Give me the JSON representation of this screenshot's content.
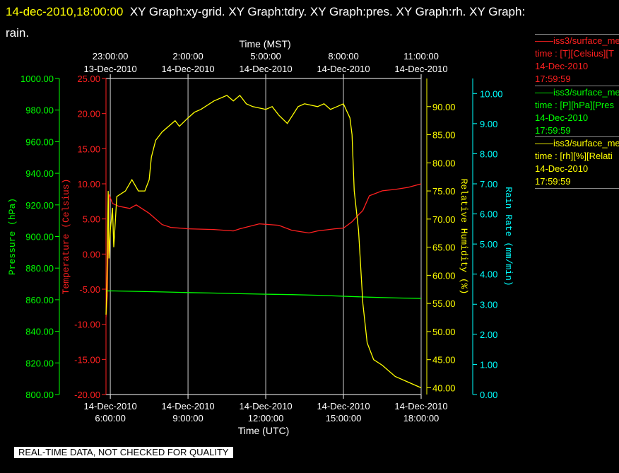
{
  "header": {
    "timestamp": "14-dec-2010,18:00:00",
    "titles": "XY Graph:xy-grid.  XY Graph:tdry.  XY Graph:pres.  XY Graph:rh.  XY Graph:",
    "titles_wrap": "rain."
  },
  "legend": [
    {
      "name": "——iss3/surface_me",
      "units": "time : [T][Celsius][T",
      "date": "14-Dec-2010",
      "time": "17:59:59",
      "color": "#ff2020"
    },
    {
      "name": "——iss3/surface_me",
      "units": "time : [P][hPa][Pres",
      "date": "14-Dec-2010",
      "time": "17:59:59",
      "color": "#00ff00"
    },
    {
      "name": "——iss3/surface_me",
      "units": "time : [rh][%][Relati",
      "date": "14-Dec-2010",
      "time": "17:59:59",
      "color": "#ffff00"
    }
  ],
  "notice": "REAL-TIME DATA, NOT CHECKED FOR QUALITY",
  "chart_data": {
    "type": "line",
    "top_axis_label": "Time (MST)",
    "bottom_axis_label": "Time (UTC)",
    "top_ticks": [
      {
        "time": "23:00:00",
        "date": "13-Dec-2010"
      },
      {
        "time": "2:00:00",
        "date": "14-Dec-2010"
      },
      {
        "time": "5:00:00",
        "date": "14-Dec-2010"
      },
      {
        "time": "8:00:00",
        "date": "14-Dec-2010"
      },
      {
        "time": "11:00:00",
        "date": "14-Dec-2010"
      }
    ],
    "bottom_ticks": [
      {
        "date": "14-Dec-2010",
        "time": "6:00:00"
      },
      {
        "date": "14-Dec-2010",
        "time": "9:00:00"
      },
      {
        "date": "14-Dec-2010",
        "time": "12:00:00"
      },
      {
        "date": "14-Dec-2010",
        "time": "15:00:00"
      },
      {
        "date": "14-Dec-2010",
        "time": "18:00:00"
      }
    ],
    "xlim": [
      "14-Dec-2010 5:50",
      "14-Dec-2010 18:00"
    ],
    "grid": true,
    "axes": {
      "pressure": {
        "label": "Pressure (hPa)",
        "ylim": [
          800,
          1000
        ],
        "ticks": [
          "800.00",
          "820.00",
          "840.00",
          "860.00",
          "880.00",
          "900.00",
          "920.00",
          "940.00",
          "960.00",
          "980.00",
          "1000.00"
        ],
        "color": "#00ff00"
      },
      "temperature": {
        "label": "Temperature (Celsius)",
        "ylim": [
          -20,
          25
        ],
        "ticks": [
          "-20.00",
          "-15.00",
          "-10.00",
          "-5.00",
          "0.00",
          "5.00",
          "10.00",
          "15.00",
          "20.00",
          "25.00"
        ],
        "color": "#ff2020"
      },
      "humidity": {
        "label": "Relative Humidity (%)",
        "ylim": [
          38.8,
          95
        ],
        "ticks": [
          "40.00",
          "45.00",
          "50.00",
          "55.00",
          "60.00",
          "65.00",
          "70.00",
          "75.00",
          "80.00",
          "85.00",
          "90.00"
        ],
        "color": "#ffff00"
      },
      "rain": {
        "label": "Rain Rate (mm/min)",
        "ylim": [
          0,
          10.5
        ],
        "ticks": [
          "0.00",
          "1.00",
          "2.00",
          "3.00",
          "4.00",
          "5.00",
          "6.00",
          "7.00",
          "8.00",
          "9.00",
          "10.00"
        ],
        "color": "#00ffff"
      }
    },
    "series": [
      {
        "axis": "temperature",
        "color": "#ff2020",
        "x": [
          "14-Dec-2010 5:50",
          "14-Dec-2010 5:53",
          "14-Dec-2010 5:57",
          "14-Dec-2010 6:05",
          "14-Dec-2010 6:20",
          "14-Dec-2010 6:45",
          "14-Dec-2010 7:00",
          "14-Dec-2010 7:30",
          "14-Dec-2010 8:00",
          "14-Dec-2010 8:20",
          "14-Dec-2010 9:00",
          "14-Dec-2010 10:00",
          "14-Dec-2010 10:45",
          "14-Dec-2010 11:00",
          "14-Dec-2010 11:45",
          "14-Dec-2010 12:30",
          "14-Dec-2010 13:00",
          "14-Dec-2010 13:40",
          "14-Dec-2010 14:00",
          "14-Dec-2010 14:40",
          "14-Dec-2010 15:00",
          "14-Dec-2010 15:20",
          "14-Dec-2010 15:35",
          "14-Dec-2010 15:45",
          "14-Dec-2010 16:00",
          "14-Dec-2010 16:30",
          "14-Dec-2010 17:00",
          "14-Dec-2010 17:30",
          "14-Dec-2010 18:00"
        ],
        "y": [
          -9.0,
          -6.0,
          8.5,
          7.2,
          6.8,
          6.5,
          7.0,
          5.8,
          4.2,
          3.8,
          3.6,
          3.5,
          3.3,
          3.6,
          4.3,
          4.1,
          3.4,
          3.0,
          3.3,
          3.6,
          3.7,
          4.6,
          5.6,
          6.2,
          8.3,
          9.0,
          9.2,
          9.5,
          10.0
        ]
      },
      {
        "axis": "pressure",
        "color": "#00ff00",
        "x": [
          "14-Dec-2010 5:50",
          "14-Dec-2010 6:00",
          "14-Dec-2010 7:00",
          "14-Dec-2010 8:00",
          "14-Dec-2010 9:00",
          "14-Dec-2010 10:00",
          "14-Dec-2010 11:00",
          "14-Dec-2010 12:00",
          "14-Dec-2010 13:00",
          "14-Dec-2010 14:00",
          "14-Dec-2010 15:00",
          "14-Dec-2010 16:00",
          "14-Dec-2010 17:00",
          "14-Dec-2010 18:00"
        ],
        "y": [
          865.5,
          865.6,
          865.3,
          864.9,
          864.5,
          864.2,
          863.8,
          863.5,
          863.2,
          862.8,
          862.2,
          861.6,
          861.1,
          860.8
        ]
      },
      {
        "axis": "humidity",
        "color": "#ffff00",
        "x": [
          "14-Dec-2010 5:50",
          "14-Dec-2010 5:52",
          "14-Dec-2010 5:55",
          "14-Dec-2010 5:57",
          "14-Dec-2010 6:00",
          "14-Dec-2010 6:05",
          "14-Dec-2010 6:08",
          "14-Dec-2010 6:15",
          "14-Dec-2010 6:35",
          "14-Dec-2010 6:50",
          "14-Dec-2010 7:05",
          "14-Dec-2010 7:20",
          "14-Dec-2010 7:30",
          "14-Dec-2010 7:35",
          "14-Dec-2010 7:45",
          "14-Dec-2010 8:00",
          "14-Dec-2010 8:30",
          "14-Dec-2010 8:40",
          "14-Dec-2010 9:00",
          "14-Dec-2010 9:15",
          "14-Dec-2010 9:30",
          "14-Dec-2010 10:00",
          "14-Dec-2010 10:30",
          "14-Dec-2010 10:45",
          "14-Dec-2010 11:00",
          "14-Dec-2010 11:15",
          "14-Dec-2010 11:30",
          "14-Dec-2010 12:00",
          "14-Dec-2010 12:15",
          "14-Dec-2010 12:30",
          "14-Dec-2010 12:50",
          "14-Dec-2010 13:15",
          "14-Dec-2010 13:30",
          "14-Dec-2010 14:00",
          "14-Dec-2010 14:15",
          "14-Dec-2010 14:30",
          "14-Dec-2010 14:45",
          "14-Dec-2010 15:00",
          "14-Dec-2010 15:15",
          "14-Dec-2010 15:20",
          "14-Dec-2010 15:25",
          "14-Dec-2010 15:35",
          "14-Dec-2010 15:45",
          "14-Dec-2010 15:55",
          "14-Dec-2010 16:10",
          "14-Dec-2010 16:30",
          "14-Dec-2010 17:00",
          "14-Dec-2010 17:30",
          "14-Dec-2010 17:45",
          "14-Dec-2010 18:00"
        ],
        "y": [
          53,
          58,
          75,
          63,
          68,
          72,
          65,
          74,
          75,
          77,
          75,
          75,
          77,
          81,
          84,
          85.5,
          87.5,
          86.5,
          88,
          89,
          89.5,
          91,
          92,
          91,
          92,
          90.5,
          90,
          89.5,
          90,
          88.5,
          87,
          90,
          90.5,
          90,
          90.5,
          89.5,
          90,
          90.5,
          88,
          85,
          75,
          68,
          55,
          48,
          45,
          44,
          42,
          41,
          40.5,
          40
        ]
      }
    ]
  }
}
